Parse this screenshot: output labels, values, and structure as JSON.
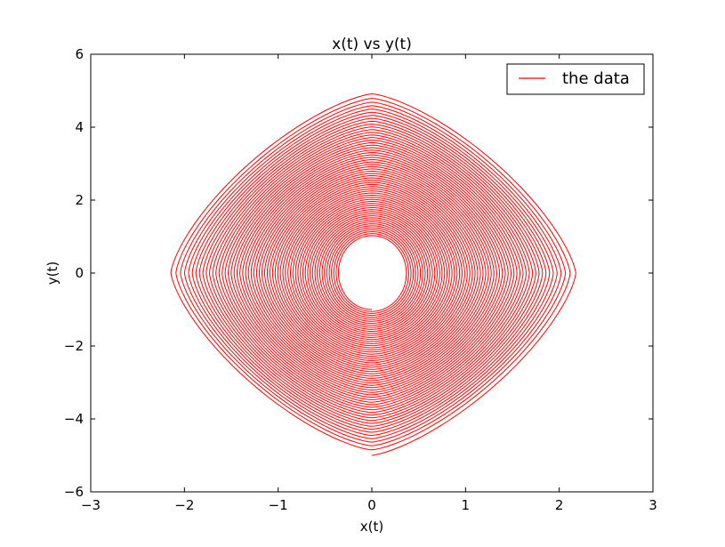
{
  "chart_data": {
    "type": "line",
    "title": "x(t) vs y(t)",
    "xlabel": "x(t)",
    "ylabel": "y(t)",
    "xlim": [
      -3,
      3
    ],
    "ylim": [
      -6,
      6
    ],
    "xticks": [
      -3,
      -2,
      -1,
      0,
      1,
      2,
      3
    ],
    "yticks": [
      -6,
      -4,
      -2,
      0,
      2,
      4,
      6
    ],
    "xtick_labels": [
      "−3",
      "−2",
      "−1",
      "0",
      "1",
      "2",
      "3"
    ],
    "ytick_labels": [
      "−6",
      "−4",
      "−2",
      "0",
      "2",
      "4",
      "6"
    ],
    "grid": false,
    "legend": {
      "position": "top-right"
    },
    "series": [
      {
        "name": "the data",
        "color": "#ff0000",
        "shape": "spiral",
        "start": {
          "x": 0.0,
          "y": -5.0
        },
        "outer_extent": {
          "x": 2.2,
          "y": 5.0
        },
        "inner_extent": {
          "x": 0.35,
          "y": 1.0
        },
        "turns": 60
      }
    ]
  }
}
